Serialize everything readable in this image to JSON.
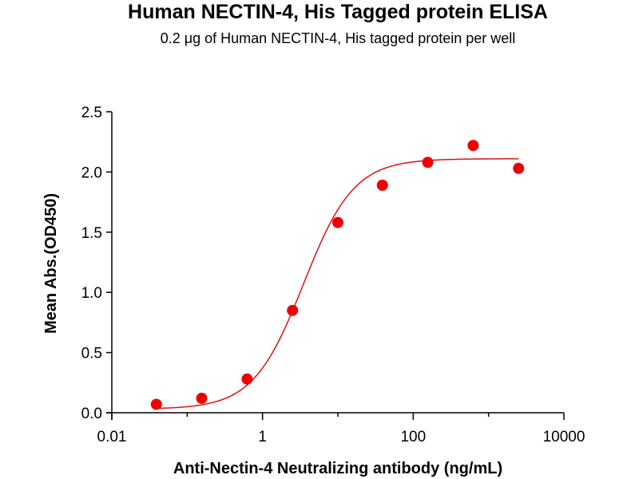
{
  "chart_data": {
    "type": "scatter",
    "title": "Human NECTIN-4, His Tagged protein ELISA",
    "subtitle": "0.2 μg of Human NECTIN-4, His tagged protein per well",
    "xlabel": "Anti-Nectin-4 Neutralizing antibody (ng/mL)",
    "ylabel": "Mean Abs.(OD450)",
    "x_scale": "log",
    "xlim": [
      0.01,
      10000
    ],
    "ylim": [
      0,
      2.5
    ],
    "x_ticks": [
      "0.01",
      "1",
      "100",
      "10000"
    ],
    "y_ticks": [
      "0.0",
      "0.5",
      "1.0",
      "1.5",
      "2.0",
      "2.5"
    ],
    "grid": false,
    "series": [
      {
        "points": [
          {
            "x": 0.039,
            "y": 0.07
          },
          {
            "x": 0.156,
            "y": 0.12
          },
          {
            "x": 0.625,
            "y": 0.28
          },
          {
            "x": 2.5,
            "y": 0.85
          },
          {
            "x": 10,
            "y": 1.58
          },
          {
            "x": 39,
            "y": 1.89
          },
          {
            "x": 156,
            "y": 2.08
          },
          {
            "x": 625,
            "y": 2.22
          },
          {
            "x": 2500,
            "y": 2.03
          }
        ]
      }
    ],
    "fit_curve": {
      "model": "4PL",
      "bottom": 0.03,
      "top": 2.11,
      "ec50": 3.5,
      "hill": 1.3,
      "x_range": [
        0.039,
        2500
      ]
    },
    "colors": {
      "points": "#ee0000",
      "curve": "#dd1111",
      "axes": "#000000"
    }
  }
}
